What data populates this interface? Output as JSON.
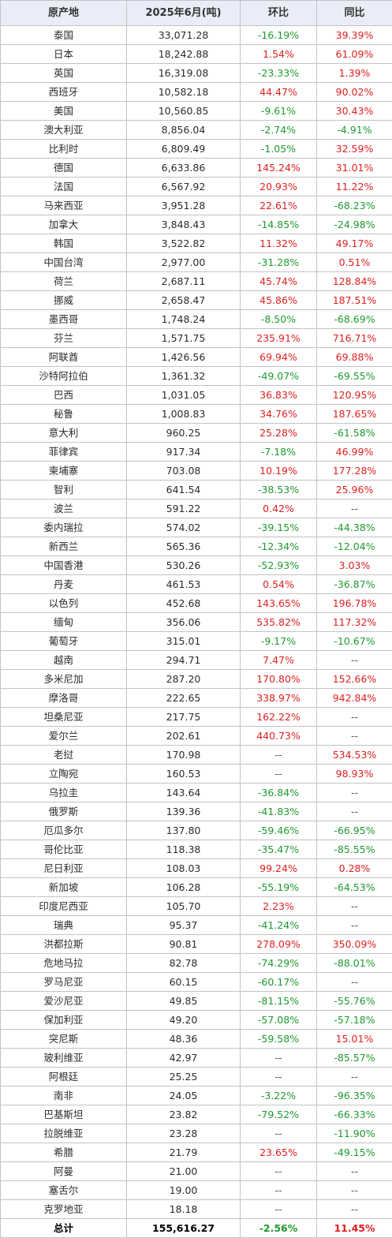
{
  "headers": [
    "原产地",
    "2025年6月(吨)",
    "环比",
    "同比"
  ],
  "rows": [
    [
      "泰国",
      "33,071.28",
      "-16.19%",
      "39.39%"
    ],
    [
      "日本",
      "18,242.88",
      "1.54%",
      "61.09%"
    ],
    [
      "英国",
      "16,319.08",
      "-23.33%",
      "1.39%"
    ],
    [
      "西班牙",
      "10,582.18",
      "44.47%",
      "90.02%"
    ],
    [
      "美国",
      "10,560.85",
      "-9.61%",
      "30.43%"
    ],
    [
      "澳大利亚",
      "8,856.04",
      "-2.74%",
      "-4.91%"
    ],
    [
      "比利时",
      "6,809.49",
      "-1.05%",
      "32.59%"
    ],
    [
      "德国",
      "6,633.86",
      "145.24%",
      "31.01%"
    ],
    [
      "法国",
      "6,567.92",
      "20.93%",
      "11.22%"
    ],
    [
      "马来西亚",
      "3,951.28",
      "22.61%",
      "-68.23%"
    ],
    [
      "加拿大",
      "3,848.43",
      "-14.85%",
      "-24.98%"
    ],
    [
      "韩国",
      "3,522.82",
      "11.32%",
      "49.17%"
    ],
    [
      "中国台湾",
      "2,977.00",
      "-31.28%",
      "0.51%"
    ],
    [
      "荷兰",
      "2,687.11",
      "45.74%",
      "128.84%"
    ],
    [
      "挪威",
      "2,658.47",
      "45.86%",
      "187.51%"
    ],
    [
      "墨西哥",
      "1,748.24",
      "-8.50%",
      "-68.69%"
    ],
    [
      "芬兰",
      "1,571.75",
      "235.91%",
      "716.71%"
    ],
    [
      "阿联酋",
      "1,426.56",
      "69.94%",
      "69.88%"
    ],
    [
      "沙特阿拉伯",
      "1,361.32",
      "-49.07%",
      "-69.55%"
    ],
    [
      "巴西",
      "1,031.05",
      "36.83%",
      "120.95%"
    ],
    [
      "秘鲁",
      "1,008.83",
      "34.76%",
      "187.65%"
    ],
    [
      "意大利",
      "960.25",
      "25.28%",
      "-61.58%"
    ],
    [
      "菲律宾",
      "917.34",
      "-7.18%",
      "46.99%"
    ],
    [
      "柬埔寨",
      "703.08",
      "10.19%",
      "177.28%"
    ],
    [
      "智利",
      "641.54",
      "-38.53%",
      "25.96%"
    ],
    [
      "波兰",
      "591.22",
      "0.42%",
      "--"
    ],
    [
      "委内瑞拉",
      "574.02",
      "-39.15%",
      "-44.38%"
    ],
    [
      "新西兰",
      "565.36",
      "-12.34%",
      "-12.04%"
    ],
    [
      "中国香港",
      "530.26",
      "-52.93%",
      "3.03%"
    ],
    [
      "丹麦",
      "461.53",
      "0.54%",
      "-36.87%"
    ],
    [
      "以色列",
      "452.68",
      "143.65%",
      "196.78%"
    ],
    [
      "缅甸",
      "356.06",
      "535.82%",
      "117.32%"
    ],
    [
      "葡萄牙",
      "315.01",
      "-9.17%",
      "-10.67%"
    ],
    [
      "越南",
      "294.71",
      "7.47%",
      "--"
    ],
    [
      "多米尼加",
      "287.20",
      "170.80%",
      "152.66%"
    ],
    [
      "摩洛哥",
      "222.65",
      "338.97%",
      "942.84%"
    ],
    [
      "坦桑尼亚",
      "217.75",
      "162.22%",
      "--"
    ],
    [
      "爱尔兰",
      "202.61",
      "440.73%",
      "--"
    ],
    [
      "老挝",
      "170.98",
      "--",
      "534.53%"
    ],
    [
      "立陶宛",
      "160.53",
      "--",
      "98.93%"
    ],
    [
      "乌拉圭",
      "143.64",
      "-36.84%",
      "--"
    ],
    [
      "俄罗斯",
      "139.36",
      "-41.83%",
      "--"
    ],
    [
      "厄瓜多尔",
      "137.80",
      "-59.46%",
      "-66.95%"
    ],
    [
      "哥伦比亚",
      "118.38",
      "-35.47%",
      "-85.55%"
    ],
    [
      "尼日利亚",
      "108.03",
      "99.24%",
      "0.28%"
    ],
    [
      "新加坡",
      "106.28",
      "-55.19%",
      "-64.53%"
    ],
    [
      "印度尼西亚",
      "105.70",
      "2.23%",
      "--"
    ],
    [
      "瑞典",
      "95.37",
      "-41.24%",
      "--"
    ],
    [
      "洪都拉斯",
      "90.81",
      "278.09%",
      "350.09%"
    ],
    [
      "危地马拉",
      "82.78",
      "-74.29%",
      "-88.01%"
    ],
    [
      "罗马尼亚",
      "60.15",
      "-60.17%",
      "--"
    ],
    [
      "爱沙尼亚",
      "49.85",
      "-81.15%",
      "-55.76%"
    ],
    [
      "保加利亚",
      "49.20",
      "-57.08%",
      "-57.18%"
    ],
    [
      "突尼斯",
      "48.36",
      "-59.58%",
      "15.01%"
    ],
    [
      "玻利维亚",
      "42.97",
      "--",
      "-85.57%"
    ],
    [
      "阿根廷",
      "25.25",
      "--",
      "--"
    ],
    [
      "南非",
      "24.05",
      "-3.22%",
      "-96.35%"
    ],
    [
      "巴基斯坦",
      "23.82",
      "-79.52%",
      "-66.33%"
    ],
    [
      "拉脱维亚",
      "23.28",
      "--",
      "-11.90%"
    ],
    [
      "希腊",
      "21.79",
      "23.65%",
      "-49.15%"
    ],
    [
      "阿曼",
      "21.00",
      "--",
      "--"
    ],
    [
      "塞舌尔",
      "19.00",
      "--",
      "--"
    ],
    [
      "克罗地亚",
      "18.18",
      "--",
      "--"
    ]
  ],
  "total": [
    "总计",
    "155,616.27",
    "-2.56%",
    "11.45%"
  ],
  "colors": {
    "header_bg": "#e9edf7",
    "positive": "#e02020",
    "negative": "#1f9a2f",
    "border": "#c3c3c3"
  }
}
